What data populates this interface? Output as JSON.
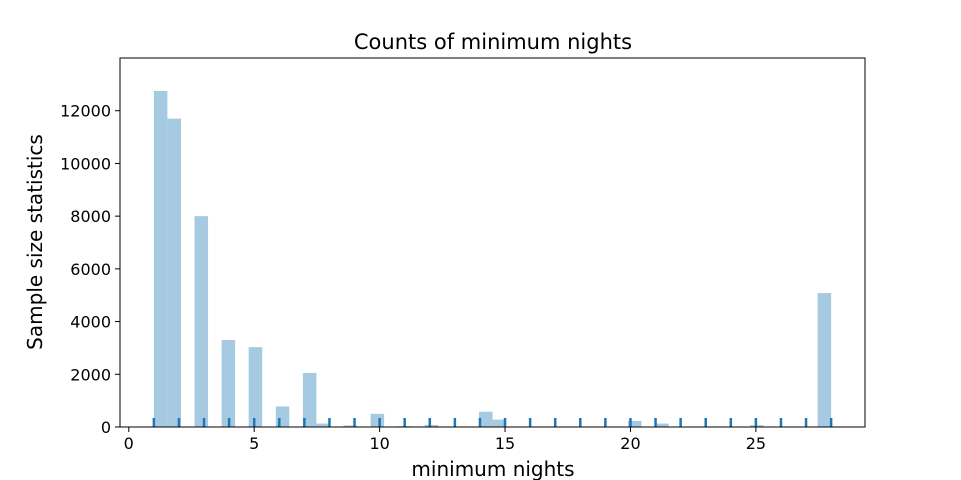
{
  "chart_data": {
    "type": "bar",
    "title": "Counts of minimum nights",
    "xlabel": "minimum nights",
    "ylabel": "Sample size statistics",
    "xlim": [
      -0.35,
      29.35
    ],
    "ylim": [
      0,
      14000
    ],
    "xticks": [
      0,
      5,
      10,
      15,
      20,
      25
    ],
    "yticks": [
      0,
      2000,
      4000,
      6000,
      8000,
      10000,
      12000
    ],
    "bin_width": 0.54,
    "bins": [
      {
        "x": 1.0,
        "value": 12750
      },
      {
        "x": 1.54,
        "value": 11700
      },
      {
        "x": 2.62,
        "value": 8000
      },
      {
        "x": 3.7,
        "value": 3300
      },
      {
        "x": 4.78,
        "value": 3030
      },
      {
        "x": 5.86,
        "value": 780
      },
      {
        "x": 6.94,
        "value": 2050
      },
      {
        "x": 7.48,
        "value": 130
      },
      {
        "x": 8.56,
        "value": 60
      },
      {
        "x": 9.64,
        "value": 500
      },
      {
        "x": 10.72,
        "value": 30
      },
      {
        "x": 11.8,
        "value": 80
      },
      {
        "x": 12.88,
        "value": 20
      },
      {
        "x": 13.96,
        "value": 580
      },
      {
        "x": 14.5,
        "value": 280
      },
      {
        "x": 19.9,
        "value": 230
      },
      {
        "x": 20.98,
        "value": 130
      },
      {
        "x": 24.76,
        "value": 70
      },
      {
        "x": 27.46,
        "value": 5080
      }
    ],
    "rug_x": [
      1,
      2,
      3,
      4,
      5,
      6,
      7,
      8,
      9,
      10,
      11,
      12,
      13,
      14,
      15,
      16,
      17,
      18,
      19,
      20,
      21,
      22,
      23,
      24,
      25,
      26,
      27,
      28
    ],
    "colors": {
      "bars": "#a6cae1",
      "rug": "#1f77b4"
    }
  }
}
